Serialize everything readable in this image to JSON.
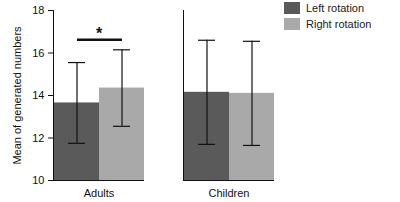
{
  "chart_data": {
    "type": "bar",
    "categories": [
      "Adults",
      "Children"
    ],
    "series": [
      {
        "name": "Left rotation",
        "color": "#5a5a5a",
        "values": [
          13.65,
          14.15
        ],
        "errors": [
          1.9,
          2.45
        ]
      },
      {
        "name": "Right rotation",
        "color": "#a9a9a9",
        "values": [
          14.35,
          14.1
        ],
        "errors": [
          1.8,
          2.45
        ]
      }
    ],
    "y_label": "Mean of generated numbers",
    "ylim": [
      10,
      18
    ],
    "yticks": [
      10,
      12,
      14,
      16,
      18
    ],
    "legend": "top-right",
    "annotations": [
      {
        "text": "*",
        "category": "Adults",
        "series": [
          "Left rotation",
          "Right rotation"
        ]
      }
    ]
  }
}
